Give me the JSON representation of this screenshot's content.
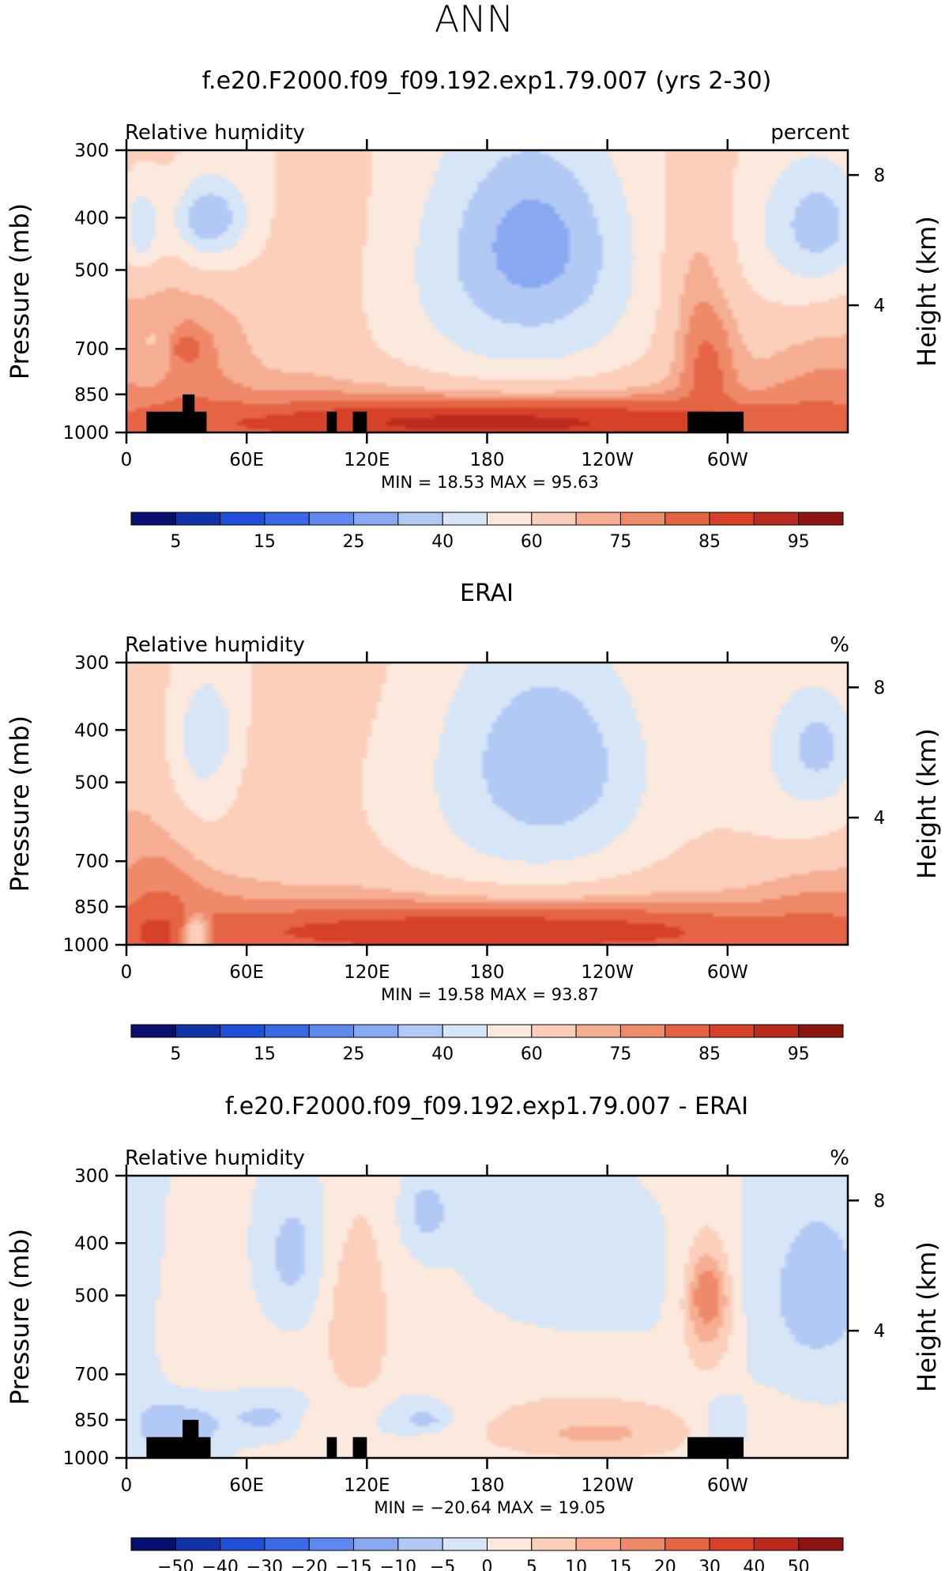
{
  "figure": {
    "title": "ANN"
  },
  "colors": {
    "rh_levels": [
      "#0a0f6e",
      "#1233a8",
      "#1f4fd6",
      "#3a6ae6",
      "#5f88ee",
      "#89a8f2",
      "#b2c9f5",
      "#d7e6f7",
      "#fce9dd",
      "#fbcfba",
      "#f6ae92",
      "#ee8a69",
      "#e46443",
      "#d64128",
      "#bb2a1c",
      "#8e1410"
    ],
    "diff_levels": [
      "#0a0f6e",
      "#1233a8",
      "#1f4fd6",
      "#3a6ae6",
      "#5f88ee",
      "#89a8f2",
      "#b2c9f5",
      "#d7e6f7",
      "#fce9dd",
      "#fbcfba",
      "#f6ae92",
      "#ee8a69",
      "#e46443",
      "#d64128",
      "#bb2a1c",
      "#8e1410"
    ],
    "land_mask": "#000000"
  },
  "chart_data": [
    {
      "type": "heatmap",
      "title": "f.e20.F2000.f09_f09.192.exp1.79.007 (yrs 2-30)",
      "left_label": "Relative humidity",
      "right_label": "percent",
      "ylabel": "Pressure (mb)",
      "y2label": "Height (km)",
      "x_ticks": [
        "0",
        "60E",
        "120E",
        "180",
        "120W",
        "60W"
      ],
      "y_ticks": [
        "300",
        "400",
        "500",
        "700",
        "850",
        "1000"
      ],
      "y2_ticks": [
        "8",
        "4"
      ],
      "stats_text": "MIN =   18.53   MAX =   95.63",
      "min": 18.53,
      "max": 95.63,
      "colorbar_labels": [
        "5",
        "15",
        "25",
        "40",
        "60",
        "75",
        "85",
        "95"
      ],
      "blobs": [
        {
          "lon": 8,
          "p": 420,
          "rx": 10,
          "ry": 80,
          "v": 40
        },
        {
          "lon": 42,
          "p": 400,
          "rx": 26,
          "ry": 110,
          "v": 45
        },
        {
          "lon": 42,
          "p": 400,
          "rx": 13,
          "ry": 45,
          "v": 30
        },
        {
          "lon": 28,
          "p": 700,
          "rx": 22,
          "ry": 110,
          "v": 77
        },
        {
          "lon": 30,
          "p": 700,
          "rx": 8,
          "ry": 40,
          "v": 86
        },
        {
          "lon": 12,
          "p": 680,
          "rx": 10,
          "ry": 160,
          "v": 70
        },
        {
          "lon": 100,
          "p": 520,
          "rx": 18,
          "ry": 240,
          "v": 74
        },
        {
          "lon": 110,
          "p": 700,
          "rx": 20,
          "ry": 200,
          "v": 72
        },
        {
          "lon": 135,
          "p": 640,
          "rx": 28,
          "ry": 180,
          "v": 70
        },
        {
          "lon": 195,
          "p": 560,
          "rx": 90,
          "ry": 450,
          "v": 58
        },
        {
          "lon": 200,
          "p": 520,
          "rx": 68,
          "ry": 340,
          "v": 47
        },
        {
          "lon": 200,
          "p": 470,
          "rx": 44,
          "ry": 200,
          "v": 34
        },
        {
          "lon": 203,
          "p": 450,
          "rx": 25,
          "ry": 110,
          "v": 25
        },
        {
          "lon": 290,
          "p": 590,
          "rx": 20,
          "ry": 380,
          "v": 76
        },
        {
          "lon": 290,
          "p": 760,
          "rx": 12,
          "ry": 180,
          "v": 82
        },
        {
          "lon": 340,
          "p": 420,
          "rx": 40,
          "ry": 180,
          "v": 47
        },
        {
          "lon": 345,
          "p": 410,
          "rx": 18,
          "ry": 80,
          "v": 35
        },
        {
          "lon": 180,
          "p": 960,
          "rx": 190,
          "ry": 130,
          "v": 86
        },
        {
          "lon": 180,
          "p": 960,
          "rx": 120,
          "ry": 70,
          "v": 91
        }
      ],
      "land": [
        {
          "lon0": 10,
          "lon1": 40,
          "p_top": 915
        },
        {
          "lon0": 28,
          "lon1": 34,
          "p_top": 850
        },
        {
          "lon0": 100,
          "lon1": 105,
          "p_top": 915
        },
        {
          "lon0": 113,
          "lon1": 120,
          "p_top": 915
        },
        {
          "lon0": 280,
          "lon1": 308,
          "p_top": 915
        }
      ]
    },
    {
      "type": "heatmap",
      "title": "ERAI",
      "left_label": "Relative humidity",
      "right_label": "%",
      "ylabel": "Pressure (mb)",
      "y2label": "Height (km)",
      "x_ticks": [
        "0",
        "60E",
        "120E",
        "180",
        "120W",
        "60W"
      ],
      "y_ticks": [
        "300",
        "400",
        "500",
        "700",
        "850",
        "1000"
      ],
      "y2_ticks": [
        "8",
        "4"
      ],
      "stats_text": "MIN =   19.58   MAX =   93.87",
      "min": 19.58,
      "max": 93.87,
      "colorbar_labels": [
        "5",
        "15",
        "25",
        "40",
        "60",
        "75",
        "85",
        "95"
      ],
      "blobs": [
        {
          "lon": 42,
          "p": 430,
          "rx": 24,
          "ry": 220,
          "v": 46
        },
        {
          "lon": 42,
          "p": 420,
          "rx": 14,
          "ry": 90,
          "v": 32
        },
        {
          "lon": 42,
          "p": 410,
          "rx": 7,
          "ry": 40,
          "v": 25
        },
        {
          "lon": 110,
          "p": 480,
          "rx": 70,
          "ry": 260,
          "v": 67
        },
        {
          "lon": 195,
          "p": 570,
          "rx": 90,
          "ry": 440,
          "v": 58
        },
        {
          "lon": 205,
          "p": 510,
          "rx": 66,
          "ry": 320,
          "v": 47
        },
        {
          "lon": 210,
          "p": 460,
          "rx": 40,
          "ry": 170,
          "v": 32
        },
        {
          "lon": 340,
          "p": 450,
          "rx": 40,
          "ry": 220,
          "v": 47
        },
        {
          "lon": 345,
          "p": 430,
          "rx": 14,
          "ry": 70,
          "v": 36
        },
        {
          "lon": 15,
          "p": 900,
          "rx": 20,
          "ry": 220,
          "v": 80
        },
        {
          "lon": 15,
          "p": 950,
          "rx": 12,
          "ry": 90,
          "v": 88
        },
        {
          "lon": 180,
          "p": 930,
          "rx": 190,
          "ry": 130,
          "v": 83
        },
        {
          "lon": 180,
          "p": 950,
          "rx": 150,
          "ry": 80,
          "v": 88
        },
        {
          "lon": 35,
          "p": 960,
          "rx": 6,
          "ry": 80,
          "v": 60
        }
      ],
      "land": []
    },
    {
      "type": "heatmap",
      "title": "f.e20.F2000.f09_f09.192.exp1.79.007 - ERAI",
      "left_label": "Relative humidity",
      "right_label": "%",
      "ylabel": "Pressure (mb)",
      "y2label": "Height (km)",
      "x_ticks": [
        "0",
        "60E",
        "120E",
        "180",
        "120W",
        "60W"
      ],
      "y_ticks": [
        "300",
        "400",
        "500",
        "700",
        "850",
        "1000"
      ],
      "y2_ticks": [
        "8",
        "4"
      ],
      "stats_text": "MIN =  −20.64   MAX =   19.05",
      "min": -20.64,
      "max": 19.05,
      "colorbar_labels": [
        "−50",
        "−40",
        "−30",
        "−20",
        "−15",
        "−10",
        "−5",
        "0",
        "5",
        "10",
        "15",
        "20",
        "30",
        "40",
        "50"
      ],
      "blobs": [
        {
          "lon": 10,
          "p": 500,
          "rx": 12,
          "ry": 300,
          "v": -7
        },
        {
          "lon": 85,
          "p": 420,
          "rx": 22,
          "ry": 140,
          "v": -7
        },
        {
          "lon": 150,
          "p": 350,
          "rx": 14,
          "ry": 60,
          "v": -8
        },
        {
          "lon": 215,
          "p": 420,
          "rx": 50,
          "ry": 180,
          "v": -4
        },
        {
          "lon": 345,
          "p": 500,
          "rx": 40,
          "ry": 280,
          "v": -7
        },
        {
          "lon": 80,
          "p": 840,
          "rx": 45,
          "ry": 90,
          "v": -7
        },
        {
          "lon": 145,
          "p": 840,
          "rx": 30,
          "ry": 80,
          "v": -7
        },
        {
          "lon": 150,
          "p": 850,
          "rx": 10,
          "ry": 30,
          "v": -15
        },
        {
          "lon": 25,
          "p": 880,
          "rx": 22,
          "ry": 150,
          "v": -10
        },
        {
          "lon": 295,
          "p": 880,
          "rx": 15,
          "ry": 120,
          "v": -12
        },
        {
          "lon": 115,
          "p": 560,
          "rx": 18,
          "ry": 260,
          "v": 9
        },
        {
          "lon": 30,
          "p": 560,
          "rx": 20,
          "ry": 200,
          "v": 4
        },
        {
          "lon": 100,
          "p": 880,
          "rx": 18,
          "ry": 120,
          "v": 4
        },
        {
          "lon": 290,
          "p": 530,
          "rx": 13,
          "ry": 160,
          "v": 13
        },
        {
          "lon": 290,
          "p": 500,
          "rx": 7,
          "ry": 60,
          "v": 20
        },
        {
          "lon": 230,
          "p": 870,
          "rx": 80,
          "ry": 160,
          "v": 6
        },
        {
          "lon": 235,
          "p": 900,
          "rx": 40,
          "ry": 70,
          "v": 11
        }
      ],
      "land": [
        {
          "lon0": 10,
          "lon1": 42,
          "p_top": 915
        },
        {
          "lon0": 28,
          "lon1": 36,
          "p_top": 850
        },
        {
          "lon0": 100,
          "lon1": 105,
          "p_top": 915
        },
        {
          "lon0": 113,
          "lon1": 120,
          "p_top": 915
        },
        {
          "lon0": 280,
          "lon1": 308,
          "p_top": 915
        }
      ]
    }
  ]
}
